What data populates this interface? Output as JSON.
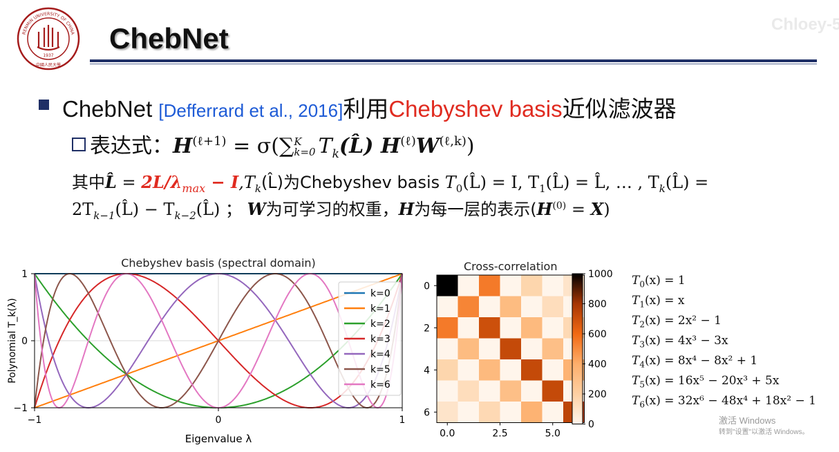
{
  "header": {
    "title": "ChebNet",
    "watermark": "Chloey-5"
  },
  "logo": {
    "text_top": "RENMIN UNIVERSITY OF CHINA",
    "year": "1937",
    "text_bottom": "中國人民大學",
    "color": "#a51c1c"
  },
  "bullet1": {
    "prefix": "ChebNet ",
    "cite": "[Defferrard et al., 2016]",
    "mid": "利用",
    "highlight": "Chebyshev basis",
    "suffix": "近似滤波器"
  },
  "bullet2": {
    "label": "表达式：",
    "formula": {
      "lhs": "H",
      "lhs_sup": "(ℓ+1)",
      "eq": " = σ(",
      "sum": "∑",
      "sum_sub": "k=0",
      "sum_sup": "K",
      "t": "T",
      "t_sub": "k",
      "lhat": "(L̂) ",
      "h": "H",
      "h_sup": "(ℓ)",
      "w": "W",
      "w_sup": "(ℓ,k)",
      "close": ")"
    }
  },
  "desc": {
    "line1_a": "其中",
    "line1_lhat": "L̂",
    "line1_eq": " = ",
    "line1_red": "2L/λ",
    "line1_red_sub": "max",
    "line1_red2": " − I",
    "line1_b": ",T",
    "line1_b_sub": "k",
    "line1_c": "(L̂)为Chebyshev basis ",
    "line1_d": "T",
    "line1_d_sub": "0",
    "line1_e": "(L̂) = I,  T",
    "line1_e_sub": "1",
    "line1_f": "(L̂) = L̂, … , T",
    "line1_f_sub": "k",
    "line1_g": "(L̂) =",
    "line2_a": "2T",
    "line2_a_sub": "k−1",
    "line2_b": "(L̂) − T",
    "line2_b_sub": "k−2",
    "line2_c": "(L̂) ；  ",
    "line2_w": "W",
    "line2_d": "为可学习的权重，",
    "line2_h": "H",
    "line2_e": "为每一层的表示(",
    "line2_h0": "H",
    "line2_h0_sup": "(0)",
    "line2_f": " = ",
    "line2_x": "X",
    "line2_g": ")"
  },
  "chart_data": [
    {
      "type": "line",
      "title": "Chebyshev basis (spectral domain)",
      "xlabel": "Eigenvalue λ",
      "ylabel": "Polynomial T_k(λ)",
      "xlim": [
        -1,
        1
      ],
      "ylim": [
        -1,
        1
      ],
      "xticks": [
        "−1",
        "0",
        "1"
      ],
      "yticks": [
        "1",
        "0",
        "−1"
      ],
      "grid": true,
      "legend_position": "right",
      "series": [
        {
          "name": "k=0",
          "k": 0,
          "color": "#1f77b4"
        },
        {
          "name": "k=1",
          "k": 1,
          "color": "#ff7f0e"
        },
        {
          "name": "k=2",
          "k": 2,
          "color": "#2ca02c"
        },
        {
          "name": "k=3",
          "k": 3,
          "color": "#d62728"
        },
        {
          "name": "k=4",
          "k": 4,
          "color": "#9467bd"
        },
        {
          "name": "k=5",
          "k": 5,
          "color": "#8c564b"
        },
        {
          "name": "k=6",
          "k": 6,
          "color": "#e377c2"
        }
      ]
    },
    {
      "type": "heatmap",
      "title": "Cross-correlation",
      "xticks": [
        "0.0",
        "2.5",
        "5.0"
      ],
      "yticks": [
        "0",
        "2",
        "4",
        "6"
      ],
      "colorbar_ticks": [
        "1000",
        "800",
        "600",
        "400",
        "200",
        "0"
      ],
      "vmin": 0,
      "vmax": 1000,
      "matrix": [
        [
          1000,
          0,
          550,
          0,
          170,
          0,
          90
        ],
        [
          0,
          520,
          0,
          320,
          0,
          130,
          0
        ],
        [
          550,
          0,
          700,
          0,
          330,
          0,
          150
        ],
        [
          0,
          320,
          0,
          720,
          0,
          300,
          0
        ],
        [
          170,
          0,
          330,
          0,
          720,
          0,
          370
        ],
        [
          0,
          130,
          0,
          300,
          0,
          720,
          0
        ],
        [
          90,
          0,
          150,
          0,
          370,
          0,
          740
        ]
      ]
    }
  ],
  "formulas": [
    {
      "lhs": "T",
      "sub": "0",
      "rhs": "(x) = 1"
    },
    {
      "lhs": "T",
      "sub": "1",
      "rhs": "(x) = x"
    },
    {
      "lhs": "T",
      "sub": "2",
      "rhs": "(x) = 2x² − 1"
    },
    {
      "lhs": "T",
      "sub": "3",
      "rhs": "(x) = 4x³ − 3x"
    },
    {
      "lhs": "T",
      "sub": "4",
      "rhs": "(x) = 8x⁴ − 8x² + 1"
    },
    {
      "lhs": "T",
      "sub": "5",
      "rhs": "(x) = 16x⁵ − 20x³ + 5x"
    },
    {
      "lhs": "T",
      "sub": "6",
      "rhs": "(x) = 32x⁶ − 48x⁴ + 18x² − 1"
    }
  ],
  "windows_notice": {
    "line1": "激活 Windows",
    "line2": "转到\"设置\"以激活 Windows。"
  }
}
